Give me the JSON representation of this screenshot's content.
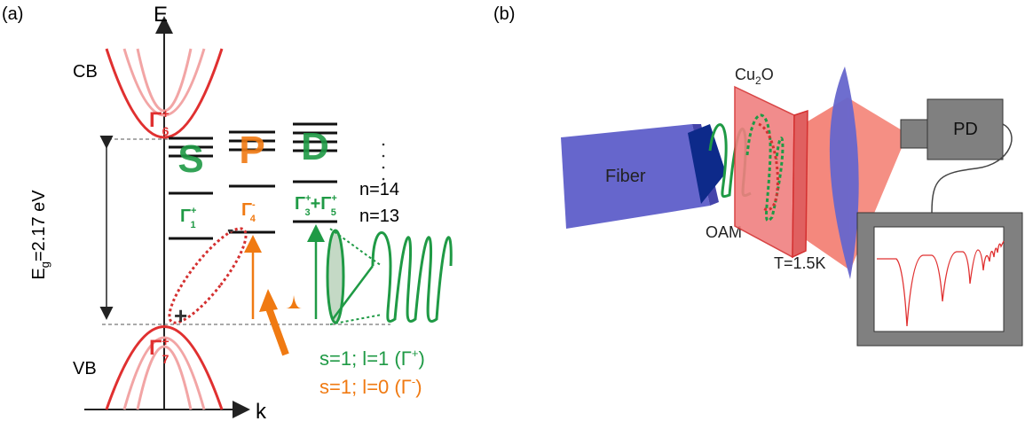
{
  "panel_a": {
    "label": "(a)",
    "axis_e": "E",
    "axis_k": "k",
    "cb": "CB",
    "vb": "VB",
    "gamma6": {
      "base": "Γ",
      "sup": "+",
      "sub": "6"
    },
    "gamma7": {
      "base": "Γ",
      "sup": "+",
      "sub": "7"
    },
    "gap": {
      "base": "E",
      "sub": "g",
      "rest": "=2.17 eV"
    },
    "states": [
      {
        "letter": "S",
        "sym": {
          "base": "Γ",
          "sup": "+",
          "sub": "1"
        }
      },
      {
        "letter": "P",
        "sym": {
          "base": "Γ",
          "sup": "-",
          "sub": "4"
        }
      },
      {
        "letter": "D",
        "sym": {
          "base1": "Γ",
          "sup1": "+",
          "sub1": "3",
          "plus": "+",
          "base2": "Γ",
          "sup2": "+",
          "sub2": "5"
        }
      }
    ],
    "n_labels": [
      "n=14",
      "n=13"
    ],
    "hole": "+",
    "electron": "-",
    "legend": [
      {
        "text": "s=1; l=1 (Γ",
        "sup": "+",
        "close": ")"
      },
      {
        "text": "s=1; l=0 (Γ",
        "sup": "-",
        "close": ")"
      }
    ]
  },
  "panel_b": {
    "label": "(b)",
    "fiber": "Fiber",
    "oam": "OAM",
    "sample": {
      "base": "Cu",
      "sub": "2",
      "rest": "O"
    },
    "temperature": "T=1.5K",
    "detector": "PD"
  }
}
